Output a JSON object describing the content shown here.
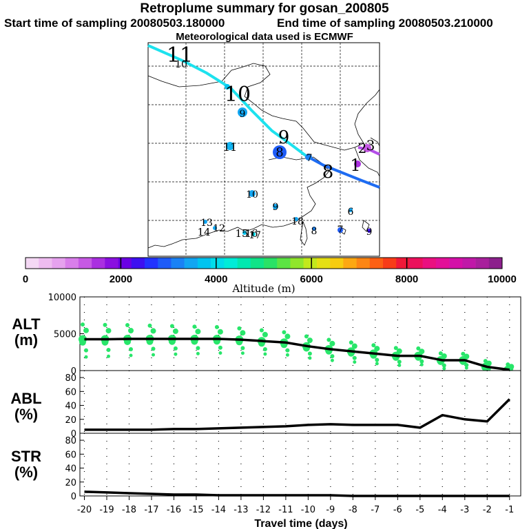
{
  "header": {
    "title": "Retroplume summary for gosan_200805",
    "start_time": "Start time of sampling 20080503.180000",
    "end_time": "End time of sampling 20080503.210000",
    "met_data": "Meteorological data used is ECMWF"
  },
  "colorbar": {
    "ticks": [
      "0",
      "2000",
      "4000",
      "6000",
      "8000",
      "10000"
    ],
    "label": "Altitude  (m)",
    "colors": [
      "#f4d8f4",
      "#eebcf0",
      "#e6a2ee",
      "#d97eea",
      "#c659e4",
      "#aa2fe0",
      "#8a10e0",
      "#6a00e4",
      "#3d10f0",
      "#2233ff",
      "#1e5cf8",
      "#1a82f5",
      "#12a6f2",
      "#00c4f0",
      "#00dcea",
      "#00ecd8",
      "#00e8b0",
      "#10e488",
      "#2ae266",
      "#5ce444",
      "#90e62c",
      "#c2e81c",
      "#e4e014",
      "#f6cc10",
      "#fca812",
      "#fc8614",
      "#fc6014",
      "#f83c18",
      "#f01838",
      "#ec105c",
      "#ea1080",
      "#e21098",
      "#d410a8",
      "#c018a8",
      "#a8209c",
      "#8c208c"
    ]
  },
  "map": {
    "track_labels": [
      {
        "text": "11",
        "size": "large"
      },
      {
        "text": "10",
        "size": "small"
      },
      {
        "text": "10",
        "size": "large"
      },
      {
        "text": "9",
        "size": "large"
      },
      {
        "text": "8",
        "size": "large"
      },
      {
        "text": "1",
        "size": "large"
      },
      {
        "text": "9",
        "size": "small"
      },
      {
        "text": "11",
        "size": "small"
      },
      {
        "text": "8",
        "size": "small"
      },
      {
        "text": "7",
        "size": "small"
      },
      {
        "text": "10",
        "size": "small"
      },
      {
        "text": "9",
        "size": "small"
      },
      {
        "text": "6",
        "size": "small"
      },
      {
        "text": "13",
        "size": "small"
      },
      {
        "text": "14",
        "size": "small"
      },
      {
        "text": "12",
        "size": "small"
      },
      {
        "text": "15",
        "size": "small"
      },
      {
        "text": "16",
        "size": "small"
      },
      {
        "text": "17",
        "size": "small"
      },
      {
        "text": "18",
        "size": "small"
      },
      {
        "text": "8",
        "size": "small"
      },
      {
        "text": "7",
        "size": "small"
      },
      {
        "text": "9",
        "size": "small"
      },
      {
        "text": "2",
        "size": "small"
      },
      {
        "text": "3",
        "size": "small"
      }
    ]
  },
  "chart_data": [
    {
      "type": "scatter",
      "panel": "ALT",
      "ylabel": "ALT (m)",
      "ylim": [
        0,
        10000
      ],
      "yticks": [
        "10000",
        "5000",
        "0"
      ],
      "x": [
        -20,
        -19,
        -18,
        -17,
        -16,
        -15,
        -14,
        -13,
        -12,
        -11,
        -10,
        -9,
        -8,
        -7,
        -6,
        -5,
        -4,
        -3,
        -2,
        -1
      ],
      "median_line": [
        4250,
        4250,
        4300,
        4300,
        4300,
        4300,
        4300,
        4200,
        4000,
        3800,
        3300,
        2900,
        2600,
        2300,
        2000,
        2000,
        1400,
        1400,
        500,
        100
      ],
      "scatter_color": "#28e66a"
    },
    {
      "type": "line",
      "panel": "ABL",
      "ylabel": "ABL (%)",
      "ylim": [
        0,
        90
      ],
      "yticks": [
        "80",
        "60",
        "40",
        "20",
        "0"
      ],
      "x": [
        -20,
        -19,
        -18,
        -17,
        -16,
        -15,
        -14,
        -13,
        -12,
        -11,
        -10,
        -9,
        -8,
        -7,
        -6,
        -5,
        -4,
        -3,
        -2,
        -1
      ],
      "values": [
        5,
        5,
        5,
        5,
        6,
        6,
        7,
        8,
        9,
        10,
        12,
        13,
        12,
        12,
        12,
        8,
        26,
        20,
        17,
        49
      ]
    },
    {
      "type": "line",
      "panel": "STR",
      "ylabel": "STR (%)",
      "ylim": [
        0,
        90
      ],
      "yticks": [
        "80",
        "60",
        "40",
        "20",
        "0"
      ],
      "x": [
        -20,
        -19,
        -18,
        -17,
        -16,
        -15,
        -14,
        -13,
        -12,
        -11,
        -10,
        -9,
        -8,
        -7,
        -6,
        -5,
        -4,
        -3,
        -2,
        -1
      ],
      "values": [
        6,
        5,
        4,
        3,
        2,
        2,
        1,
        1,
        1,
        1,
        1,
        1,
        0,
        0,
        0,
        0,
        0,
        0,
        0,
        0
      ]
    }
  ],
  "xaxis": {
    "label": "Travel time (days)",
    "ticks": [
      "-20",
      "-19",
      "-18",
      "-17",
      "-16",
      "-15",
      "-14",
      "-13",
      "-12",
      "-11",
      "-10",
      "-9",
      "-8",
      "-7",
      "-6",
      "-5",
      "-4",
      "-3",
      "-2",
      "-1"
    ]
  }
}
